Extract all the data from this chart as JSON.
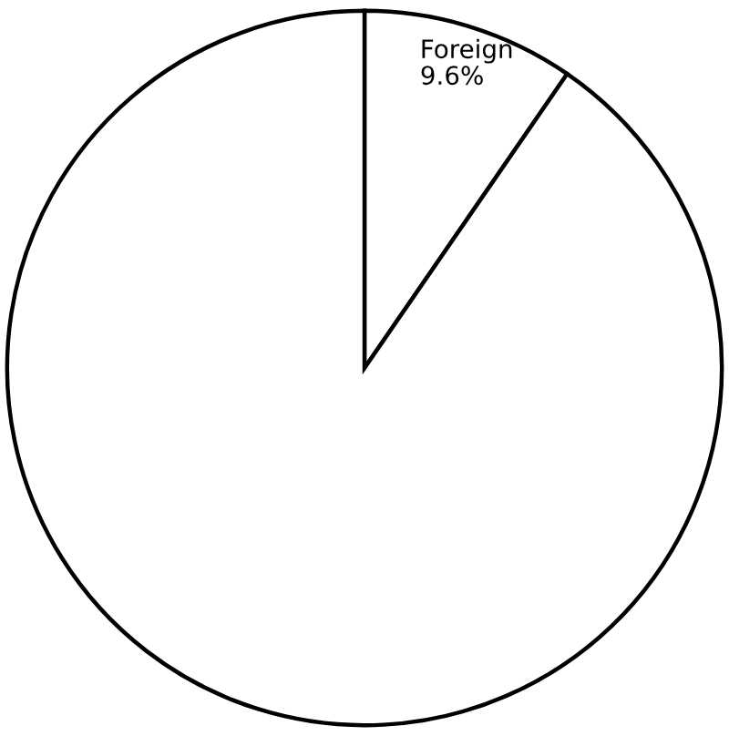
{
  "chart_data": {
    "type": "pie",
    "categories": [
      "Foreign",
      null
    ],
    "values": [
      9.6,
      90.4
    ],
    "value_labels": [
      "9.6%",
      null
    ],
    "colors": [
      "#ffffff",
      "#ffffff"
    ]
  }
}
